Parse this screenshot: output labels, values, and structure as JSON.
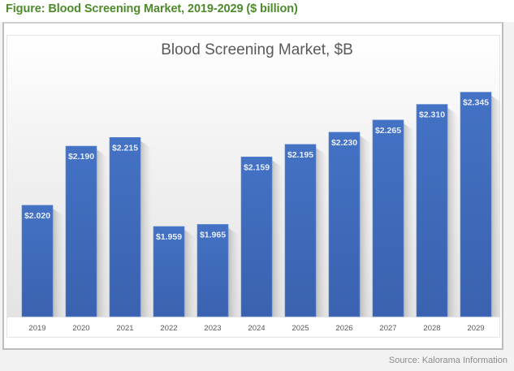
{
  "figure_title": "Figure: Blood Screening Market, 2019-2029 ($ billion)",
  "source": "Source: Kalorama Information",
  "colors": {
    "bar": "#4472c4",
    "bar_dark": "#3a62b0",
    "figure_title": "#4d8a2a"
  },
  "chart_data": {
    "type": "bar",
    "title": "Blood Screening Market, $B",
    "xlabel": "",
    "ylabel": "",
    "categories": [
      "2019",
      "2020",
      "2021",
      "2022",
      "2023",
      "2024",
      "2025",
      "2026",
      "2027",
      "2028",
      "2029"
    ],
    "values": [
      2.02,
      2.19,
      2.215,
      1.959,
      1.965,
      2.159,
      2.195,
      2.23,
      2.265,
      2.31,
      2.345
    ],
    "data_labels": [
      "$2.020",
      "$2.190",
      "$2.215",
      "$1.959",
      "$1.965",
      "$2.159",
      "$2.195",
      "$2.230",
      "$2.265",
      "$2.310",
      "$2.345"
    ],
    "ylim": [
      1.7,
      2.4
    ],
    "grid": false,
    "legend": "none"
  }
}
